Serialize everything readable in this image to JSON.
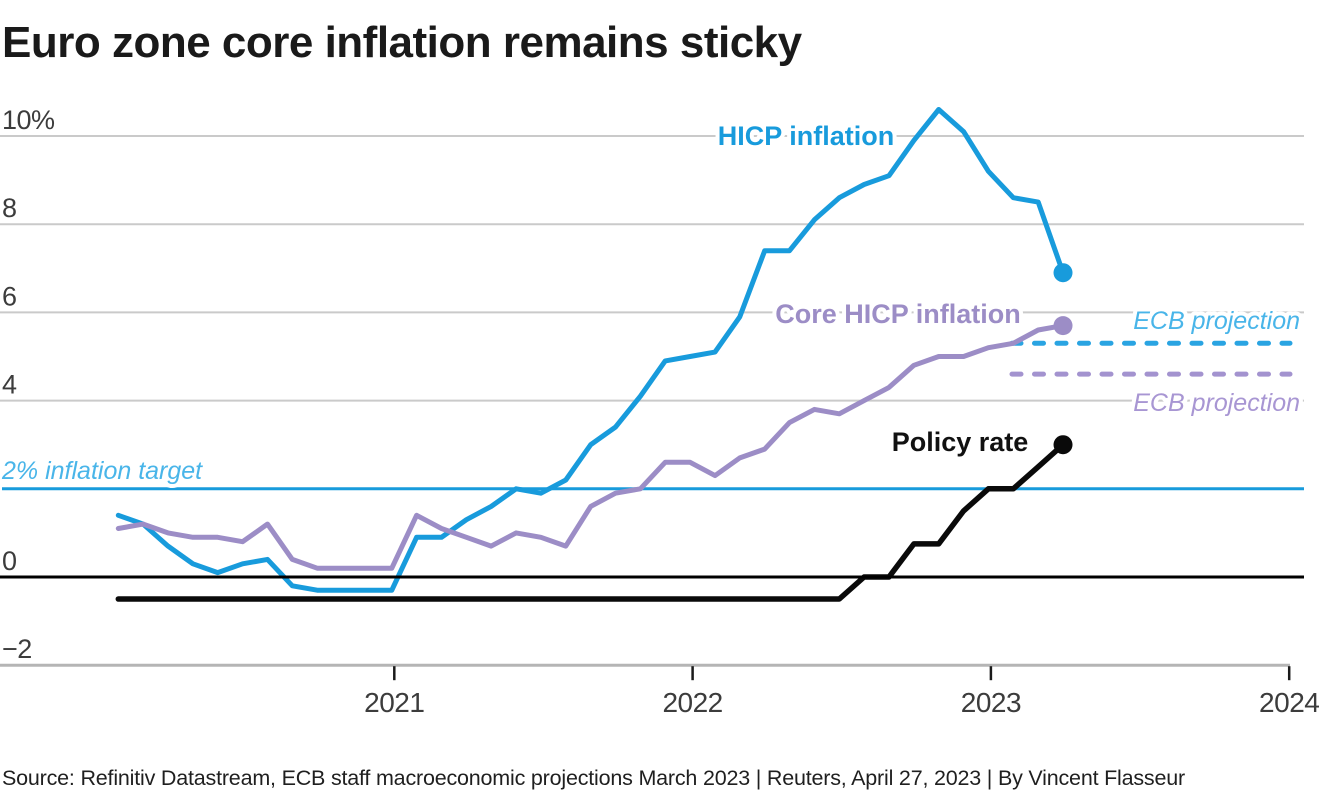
{
  "title": "Euro zone core inflation remains sticky",
  "source_line": "Source: Refinitiv Datastream, ECB staff macroeconomic projections March 2023 | Reuters, April 27, 2023 | By Vincent Flasseur",
  "colors": {
    "hicp_blue": "#189BDC",
    "core_purple": "#9C8DC6",
    "policy_black": "#0a0a0a",
    "projection_blue_dash": "#2AA4E2",
    "projection_purple_dash": "#A393CF",
    "label_light_blue": "#49B5E9",
    "label_light_purple": "#A896D3",
    "gridline_gray": "#cacaca",
    "axis_gray": "#b5b5b5",
    "tick_dark": "#1a1a1a",
    "axis_text_gray": "#3c3c3c",
    "zero_line_black": "#000000"
  },
  "chart_data": {
    "type": "line",
    "title": "Euro zone core inflation remains sticky",
    "xlabel": "",
    "ylabel": "%",
    "ylim": [
      -2,
      10.6
    ],
    "grid": true,
    "x_unit": "month",
    "months": [
      "2020-01",
      "2020-02",
      "2020-03",
      "2020-04",
      "2020-05",
      "2020-06",
      "2020-07",
      "2020-08",
      "2020-09",
      "2020-10",
      "2020-11",
      "2020-12",
      "2021-01",
      "2021-02",
      "2021-03",
      "2021-04",
      "2021-05",
      "2021-06",
      "2021-07",
      "2021-08",
      "2021-09",
      "2021-10",
      "2021-11",
      "2021-12",
      "2022-01",
      "2022-02",
      "2022-03",
      "2022-04",
      "2022-05",
      "2022-06",
      "2022-07",
      "2022-08",
      "2022-09",
      "2022-10",
      "2022-11",
      "2022-12",
      "2023-01",
      "2023-02",
      "2023-03"
    ],
    "series": [
      {
        "name": "HICP inflation",
        "values": [
          1.4,
          1.2,
          0.7,
          0.3,
          0.1,
          0.3,
          0.4,
          -0.2,
          -0.3,
          -0.3,
          -0.3,
          -0.3,
          0.9,
          0.9,
          1.3,
          1.6,
          2.0,
          1.9,
          2.2,
          3.0,
          3.4,
          4.1,
          4.9,
          5.0,
          5.1,
          5.9,
          7.4,
          7.4,
          8.1,
          8.6,
          8.9,
          9.1,
          9.9,
          10.6,
          10.1,
          9.2,
          8.6,
          8.5,
          6.9
        ]
      },
      {
        "name": "Core HICP inflation",
        "values": [
          1.1,
          1.2,
          1.0,
          0.9,
          0.9,
          0.8,
          1.2,
          0.4,
          0.2,
          0.2,
          0.2,
          0.2,
          1.4,
          1.1,
          0.9,
          0.7,
          1.0,
          0.9,
          0.7,
          1.6,
          1.9,
          2.0,
          2.6,
          2.6,
          2.3,
          2.7,
          2.9,
          3.5,
          3.8,
          3.7,
          4.0,
          4.3,
          4.8,
          5.0,
          5.0,
          5.2,
          5.3,
          5.6,
          5.7
        ]
      },
      {
        "name": "Policy rate",
        "values": [
          -0.5,
          -0.5,
          -0.5,
          -0.5,
          -0.5,
          -0.5,
          -0.5,
          -0.5,
          -0.5,
          -0.5,
          -0.5,
          -0.5,
          -0.5,
          -0.5,
          -0.5,
          -0.5,
          -0.5,
          -0.5,
          -0.5,
          -0.5,
          -0.5,
          -0.5,
          -0.5,
          -0.5,
          -0.5,
          -0.5,
          -0.5,
          -0.5,
          -0.5,
          -0.5,
          0.0,
          0.0,
          0.75,
          0.75,
          1.5,
          2.0,
          2.0,
          2.5,
          3.0
        ]
      }
    ],
    "projections": [
      {
        "label": "ECB projection",
        "for_series": "HICP inflation",
        "value": 5.3
      },
      {
        "label": "ECB projection",
        "for_series": "Core HICP inflation",
        "value": 4.6
      }
    ],
    "target_line": {
      "label": "2% inflation target",
      "value": 2
    },
    "y_axis": {
      "ticks": [
        {
          "value": 10,
          "label": "10%",
          "grid": true
        },
        {
          "value": 8,
          "label": "8",
          "grid": true
        },
        {
          "value": 6,
          "label": "6",
          "grid": true
        },
        {
          "value": 4,
          "label": "4",
          "grid": true
        },
        {
          "value": 0,
          "label": "0",
          "grid": false
        },
        {
          "value": -2,
          "label": "−2",
          "grid": false
        }
      ]
    },
    "x_axis": {
      "tick_labels": [
        "2021",
        "2022",
        "2023",
        "2024"
      ]
    },
    "legend_position": "inline-annotations"
  }
}
